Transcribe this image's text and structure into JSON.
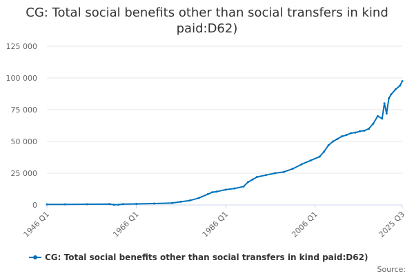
{
  "colors": {
    "series": "#0072bb",
    "grid": "#e6e6e6",
    "axis_text": "#666666"
  },
  "chart_data": {
    "type": "line",
    "title": "CG: Total social benefits other than social transfers in kind paid:D62)",
    "xlabel": "",
    "ylabel": "",
    "x_tick_labels": [
      "1946 Q1",
      "1966 Q1",
      "1986 Q1",
      "2006 Q1",
      "2025 Q3"
    ],
    "x_range": [
      1946.0,
      2025.5
    ],
    "ylim": [
      0,
      125000
    ],
    "y_ticks": [
      0,
      25000,
      50000,
      75000,
      100000,
      125000
    ],
    "y_tick_labels": [
      "0",
      "25 000",
      "50 000",
      "75 000",
      "100 000",
      "125 000"
    ],
    "grid": true,
    "legend_position": "bottom",
    "series": [
      {
        "name": "CG: Total social benefits other than social transfers in kind paid:D62)",
        "points": [
          [
            1946.0,
            400
          ],
          [
            1950.0,
            450
          ],
          [
            1955.0,
            550
          ],
          [
            1960.0,
            650
          ],
          [
            1961.0,
            150
          ],
          [
            1962.0,
            200
          ],
          [
            1963.0,
            600
          ],
          [
            1966.0,
            800
          ],
          [
            1970.0,
            1100
          ],
          [
            1974.0,
            1500
          ],
          [
            1976.0,
            2500
          ],
          [
            1978.0,
            3500
          ],
          [
            1980.0,
            5500
          ],
          [
            1982.0,
            8500
          ],
          [
            1983.0,
            10000
          ],
          [
            1984.0,
            10500
          ],
          [
            1986.0,
            12000
          ],
          [
            1988.0,
            13000
          ],
          [
            1990.0,
            14500
          ],
          [
            1991.0,
            18000
          ],
          [
            1992.0,
            20000
          ],
          [
            1993.0,
            22000
          ],
          [
            1995.0,
            23500
          ],
          [
            1997.0,
            25000
          ],
          [
            1999.0,
            26000
          ],
          [
            2001.0,
            28500
          ],
          [
            2003.0,
            32000
          ],
          [
            2005.0,
            35000
          ],
          [
            2007.0,
            38000
          ],
          [
            2008.0,
            42000
          ],
          [
            2009.0,
            47000
          ],
          [
            2010.0,
            50000
          ],
          [
            2011.0,
            52000
          ],
          [
            2012.0,
            54000
          ],
          [
            2013.0,
            55000
          ],
          [
            2014.0,
            56500
          ],
          [
            2015.0,
            57000
          ],
          [
            2016.0,
            58000
          ],
          [
            2017.0,
            58500
          ],
          [
            2018.0,
            60000
          ],
          [
            2019.0,
            64000
          ],
          [
            2020.0,
            70000
          ],
          [
            2021.0,
            68000
          ],
          [
            2021.5,
            80000
          ],
          [
            2022.0,
            72000
          ],
          [
            2022.5,
            84000
          ],
          [
            2023.0,
            87000
          ],
          [
            2024.0,
            91000
          ],
          [
            2025.0,
            94000
          ],
          [
            2025.5,
            97500
          ]
        ]
      }
    ]
  },
  "legend": {
    "label": "CG: Total social benefits other than social transfers in kind paid:D62)"
  },
  "source": "Source:"
}
